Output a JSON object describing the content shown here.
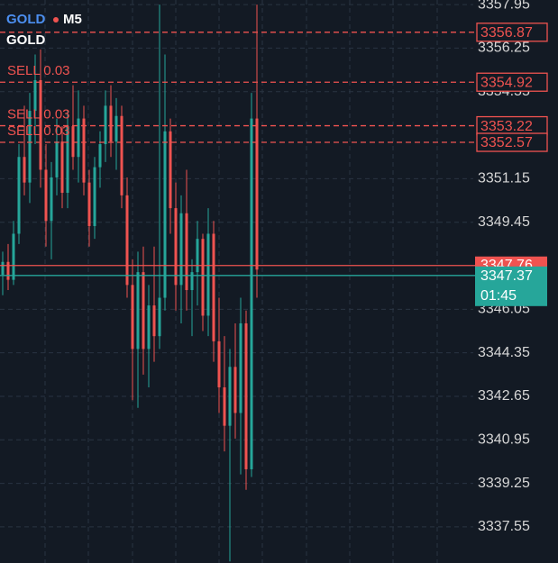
{
  "header": {
    "symbol": "GOLD",
    "timeframe": "M5",
    "name": "GOLD"
  },
  "chart_data": {
    "type": "candlestick",
    "ylim": [
      3336.14,
      3358.13
    ],
    "yticks": [
      3357.95,
      3356.25,
      3354.55,
      3351.15,
      3349.45,
      3346.05,
      3344.35,
      3342.65,
      3340.95,
      3339.25,
      3337.55
    ],
    "grid": true,
    "up_color": "#26a69a",
    "down_color": "#ef5350",
    "open": [
      3347.4,
      3347.9,
      3347.2,
      3349.0,
      3352.0,
      3351.0,
      3353.8,
      3355.0,
      3351.5,
      3349.5,
      3351.2,
      3352.6,
      3350.6,
      3353.2,
      3352.0,
      3353.5,
      3351.0,
      3349.3,
      3351.6,
      3352.5,
      3354.0,
      3352.6,
      3353.6,
      3350.5,
      3347.0,
      3344.5,
      3347.5,
      3344.5,
      3346.2,
      3345.0,
      3346.5,
      3353.0,
      3350.0,
      3347.0,
      3349.8,
      3346.8,
      3347.5,
      3348.8,
      3345.8,
      3349.0,
      3344.8,
      3343.0,
      3341.5,
      3343.8,
      3342.0,
      3345.5,
      3339.8,
      3353.5
    ],
    "high": [
      3348.3,
      3348.6,
      3349.5,
      3352.5,
      3354.0,
      3354.5,
      3356.0,
      3356.2,
      3352.5,
      3351.8,
      3353.5,
      3353.2,
      3353.8,
      3354.8,
      3354.6,
      3354.0,
      3351.5,
      3352.0,
      3353.0,
      3354.6,
      3354.8,
      3354.3,
      3354.0,
      3351.2,
      3348.0,
      3348.3,
      3348.5,
      3347.0,
      3348.5,
      3357.95,
      3356.0,
      3353.5,
      3351.0,
      3350.5,
      3351.5,
      3348.0,
      3349.5,
      3349.0,
      3350.0,
      3349.5,
      3346.5,
      3345.0,
      3344.5,
      3345.5,
      3346.5,
      3346.0,
      3354.5,
      3357.95
    ],
    "low": [
      3346.6,
      3346.8,
      3347.0,
      3348.6,
      3350.5,
      3350.2,
      3352.5,
      3350.8,
      3348.5,
      3348.0,
      3350.5,
      3350.0,
      3350.0,
      3351.5,
      3351.0,
      3350.5,
      3348.5,
      3348.8,
      3350.8,
      3351.8,
      3352.0,
      3351.5,
      3350.0,
      3346.5,
      3342.5,
      3342.2,
      3343.5,
      3343.0,
      3344.0,
      3344.5,
      3346.0,
      3349.0,
      3346.0,
      3345.5,
      3346.0,
      3345.0,
      3346.2,
      3345.2,
      3345.0,
      3344.0,
      3342.0,
      3340.5,
      3336.2,
      3341.0,
      3339.6,
      3339.0,
      3339.5,
      3346.5
    ],
    "close": [
      3347.9,
      3347.2,
      3349.0,
      3352.0,
      3351.0,
      3353.8,
      3355.0,
      3351.5,
      3349.5,
      3351.2,
      3352.6,
      3350.6,
      3353.2,
      3352.0,
      3353.5,
      3351.0,
      3349.3,
      3351.6,
      3352.5,
      3354.0,
      3352.6,
      3353.6,
      3350.5,
      3347.0,
      3344.5,
      3347.5,
      3344.5,
      3346.2,
      3345.0,
      3346.5,
      3353.0,
      3350.0,
      3347.0,
      3349.8,
      3346.8,
      3347.5,
      3348.8,
      3345.8,
      3349.0,
      3344.8,
      3343.0,
      3341.5,
      3343.8,
      3342.0,
      3345.5,
      3339.8,
      3353.5,
      3347.6
    ],
    "levels": [
      {
        "price": 3356.87
      },
      {
        "price": 3354.92,
        "label": "SELL 0.03"
      },
      {
        "price": 3353.22,
        "label": "SELL 0.03"
      },
      {
        "price": 3352.57,
        "label": "SELL 0.03"
      }
    ],
    "bid": 3347.76,
    "ask": {
      "price": 3347.37,
      "timer": "01:45"
    }
  }
}
